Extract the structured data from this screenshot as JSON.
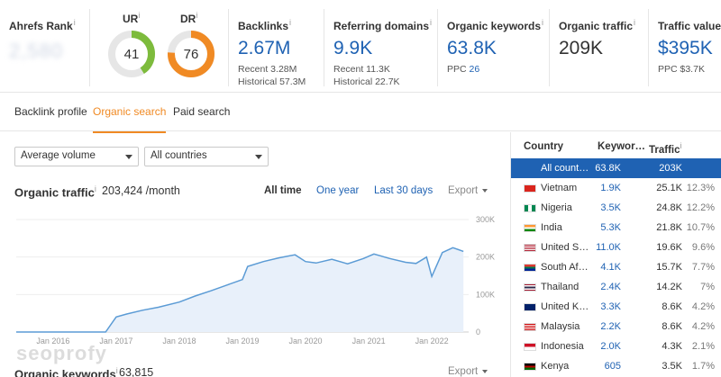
{
  "metrics": {
    "ahrefs_rank": {
      "label": "Ahrefs Rank",
      "info": "i",
      "value": "2,580"
    },
    "ur": {
      "label": "UR",
      "info": "i",
      "value": "41",
      "fraction": 0.41,
      "color": "#7dbb3c"
    },
    "dr": {
      "label": "DR",
      "info": "i",
      "value": "76",
      "fraction": 0.76,
      "color": "#f08a24"
    },
    "backlinks": {
      "label": "Backlinks",
      "info": "i",
      "value": "2.67M",
      "recent": "Recent 3.28M",
      "historical": "Historical 57.3M"
    },
    "referring_domains": {
      "label": "Referring domains",
      "info": "i",
      "value": "9.9K",
      "recent": "Recent 11.3K",
      "historical": "Historical 22.7K"
    },
    "organic_keywords": {
      "label": "Organic keywords",
      "info": "i",
      "value": "63.8K",
      "ppc_label": "PPC",
      "ppc_value": "26"
    },
    "organic_traffic": {
      "label": "Organic traffic",
      "info": "i",
      "value": "209K"
    },
    "traffic_value": {
      "label": "Traffic value",
      "info": "i",
      "value": "$395K",
      "ppc": "PPC $3.7K"
    }
  },
  "tabs": [
    {
      "label": "Backlink profile",
      "active": false
    },
    {
      "label": "Organic search",
      "active": true
    },
    {
      "label": "Paid search",
      "active": false
    }
  ],
  "filters": {
    "volume": "Average volume",
    "countries": "All countries"
  },
  "organic_traffic_panel": {
    "title": "Organic traffic",
    "info": "i",
    "value": "203,424 /month",
    "ranges": [
      "All time",
      "One year",
      "Last 30 days"
    ],
    "active_range": "All time",
    "export_label": "Export"
  },
  "organic_keywords_panel": {
    "title": "Organic keywords",
    "info": "i",
    "value": "63,815",
    "export_label": "Export"
  },
  "watermark": "seoprofy",
  "colors": {
    "accent": "#f08a24",
    "link": "#1f62b3",
    "chart_line": "#5b9bd5",
    "chart_fill": "#e8f0fa",
    "selected_row": "#1f62b3"
  },
  "chart_data": {
    "type": "area",
    "title": "",
    "xlabel": "",
    "ylabel": "",
    "x_ticks": [
      "Jan 2016",
      "Jan 2017",
      "Jan 2018",
      "Jan 2019",
      "Jan 2020",
      "Jan 2021",
      "Jan 2022"
    ],
    "y_ticks": [
      "0",
      "100K",
      "200K",
      "300K"
    ],
    "ylim": [
      0,
      300000
    ],
    "xlim": [
      "2015-06",
      "2022-08"
    ],
    "grid": true,
    "series": [
      {
        "x": [
          "2015-06",
          "2016-06",
          "2016-11",
          "2017-01",
          "2017-03",
          "2017-06",
          "2017-09",
          "2018-01",
          "2018-04",
          "2018-07",
          "2018-10",
          "2019-01",
          "2019-02",
          "2019-05",
          "2019-08",
          "2019-11",
          "2020-01",
          "2020-03",
          "2020-06",
          "2020-09",
          "2020-12",
          "2021-02",
          "2021-05",
          "2021-08",
          "2021-10",
          "2021-12",
          "2022-01",
          "2022-03",
          "2022-05",
          "2022-07"
        ],
        "values": [
          0,
          0,
          0,
          40000,
          48000,
          58000,
          66000,
          80000,
          96000,
          110000,
          125000,
          140000,
          175000,
          188000,
          198000,
          206000,
          188000,
          184000,
          194000,
          182000,
          196000,
          208000,
          196000,
          186000,
          183000,
          200000,
          148000,
          212000,
          225000,
          215000
        ]
      }
    ]
  },
  "country_table": {
    "headers": {
      "country": "Country",
      "keywords": "Keywor…",
      "traffic": "Traffic",
      "info": "i"
    },
    "rows": [
      {
        "name": "All count…",
        "keywords": "63.8K",
        "traffic": "203K",
        "pct": "",
        "selected": true,
        "flag": ""
      },
      {
        "name": "Vietnam",
        "keywords": "1.9K",
        "traffic": "25.1K",
        "pct": "12.3%",
        "selected": false,
        "flag": "vn"
      },
      {
        "name": "Nigeria",
        "keywords": "3.5K",
        "traffic": "24.8K",
        "pct": "12.2%",
        "selected": false,
        "flag": "ng"
      },
      {
        "name": "India",
        "keywords": "5.3K",
        "traffic": "21.8K",
        "pct": "10.7%",
        "selected": false,
        "flag": "in"
      },
      {
        "name": "United S…",
        "keywords": "11.0K",
        "traffic": "19.6K",
        "pct": "9.6%",
        "selected": false,
        "flag": "us"
      },
      {
        "name": "South Af…",
        "keywords": "4.1K",
        "traffic": "15.7K",
        "pct": "7.7%",
        "selected": false,
        "flag": "za"
      },
      {
        "name": "Thailand",
        "keywords": "2.4K",
        "traffic": "14.2K",
        "pct": "7%",
        "selected": false,
        "flag": "th"
      },
      {
        "name": "United K…",
        "keywords": "3.3K",
        "traffic": "8.6K",
        "pct": "4.2%",
        "selected": false,
        "flag": "gb"
      },
      {
        "name": "Malaysia",
        "keywords": "2.2K",
        "traffic": "8.6K",
        "pct": "4.2%",
        "selected": false,
        "flag": "my"
      },
      {
        "name": "Indonesia",
        "keywords": "2.0K",
        "traffic": "4.3K",
        "pct": "2.1%",
        "selected": false,
        "flag": "id"
      },
      {
        "name": "Kenya",
        "keywords": "605",
        "traffic": "3.5K",
        "pct": "1.7%",
        "selected": false,
        "flag": "ke"
      }
    ]
  }
}
